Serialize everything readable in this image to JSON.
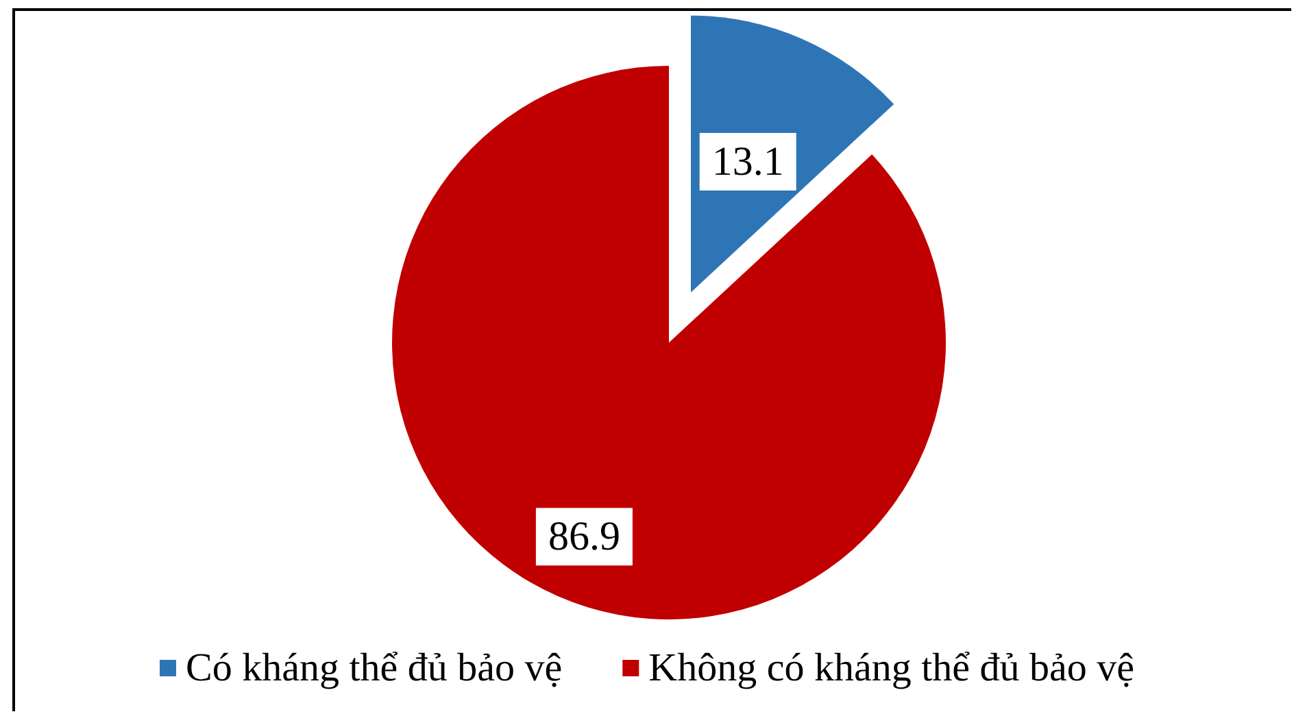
{
  "chart_data": {
    "type": "pie",
    "categories": [
      "Có kháng thể đủ bảo vệ",
      "Không có kháng thể đủ bảo vệ"
    ],
    "values": [
      13.1,
      86.9
    ],
    "colors": [
      "#2e75b6",
      "#c00000"
    ],
    "data_labels": true,
    "legend": "bottom"
  }
}
